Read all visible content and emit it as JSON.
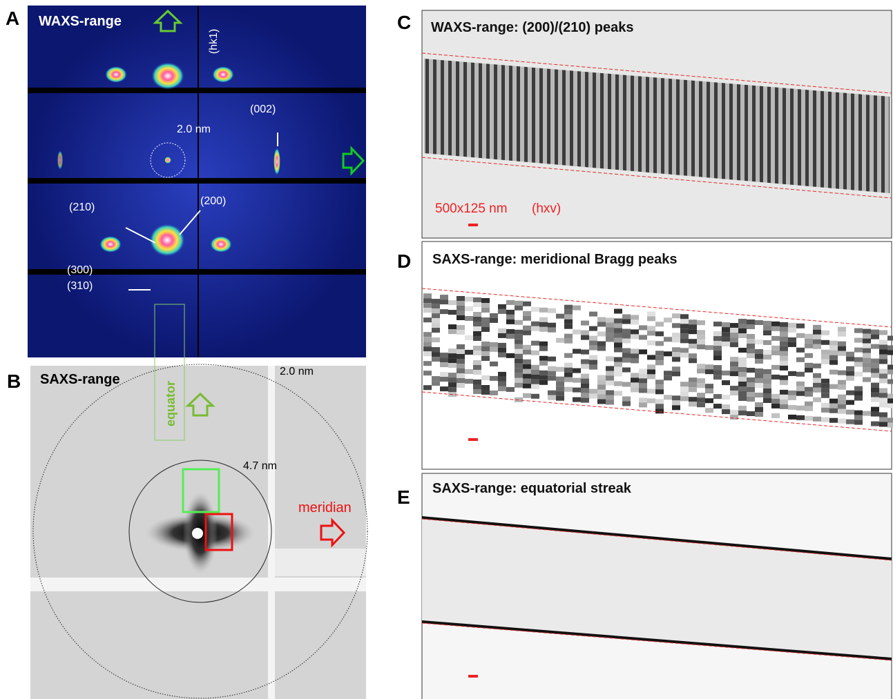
{
  "panels": [
    {
      "letter": "A",
      "title": "WAXS-range",
      "annotations": [
        "(hk1)",
        "(002)",
        "2.0 nm",
        "(210)",
        "(200)",
        "(300)",
        "(310)"
      ]
    },
    {
      "letter": "B",
      "title": "SAXS-range",
      "annotations": [
        "2.0 nm",
        "equator",
        "4.7 nm",
        "meridian"
      ]
    },
    {
      "letter": "C",
      "title": "WAXS-range: (200)/(210) peaks",
      "scale": "500x125 nm",
      "scale_note": "(hxv)"
    },
    {
      "letter": "D",
      "title": "SAXS-range: meridional Bragg peaks"
    },
    {
      "letter": "E",
      "title": "SAXS-range: equatorial streak"
    }
  ]
}
